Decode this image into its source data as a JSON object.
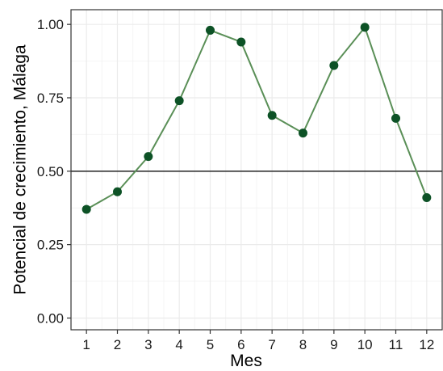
{
  "chart_data": {
    "type": "line",
    "title": "",
    "xlabel": "Mes",
    "ylabel": "Potencial de crecimiento, Málaga",
    "x": [
      1,
      2,
      3,
      4,
      5,
      6,
      7,
      8,
      9,
      10,
      11,
      12
    ],
    "x_tick_labels": [
      "1",
      "2",
      "3",
      "4",
      "5",
      "6",
      "7",
      "8",
      "9",
      "10",
      "11",
      "12"
    ],
    "y_ticks": [
      0.0,
      0.25,
      0.5,
      0.75,
      1.0
    ],
    "y_tick_labels": [
      "0.00",
      "0.25",
      "0.50",
      "0.75",
      "1.00"
    ],
    "xlim": [
      0.5,
      12.5
    ],
    "ylim": [
      -0.04,
      1.05
    ],
    "series": [
      {
        "values": [
          0.37,
          0.43,
          0.55,
          0.74,
          0.98,
          0.94,
          0.69,
          0.63,
          0.86,
          0.99,
          0.68,
          0.41
        ]
      }
    ],
    "reference_line": 0.5,
    "grid": true,
    "colors": {
      "line": "#5a8f57",
      "point": "#0d5226",
      "reference": "#333333",
      "grid_major": "#ebebeb",
      "grid_minor": "#f4f4f4",
      "panel_border": "#333333"
    }
  }
}
